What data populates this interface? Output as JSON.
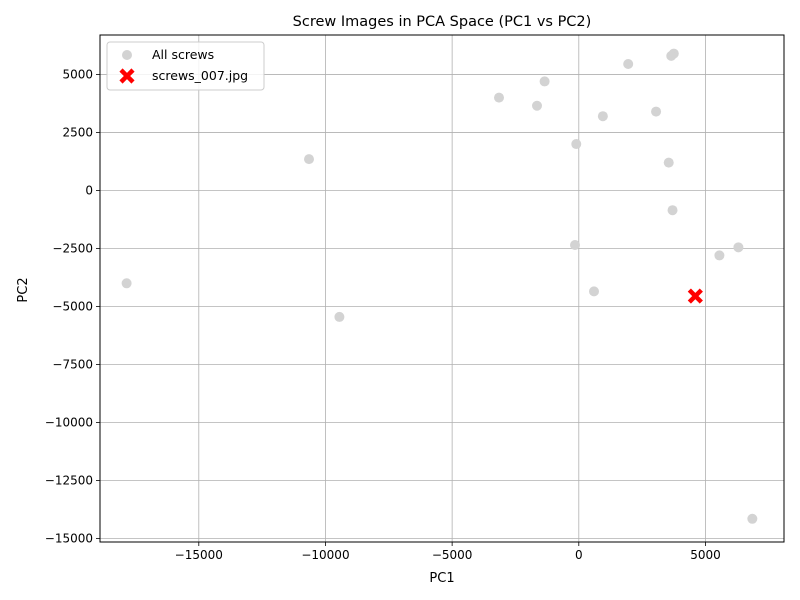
{
  "chart_data": {
    "type": "scatter",
    "title": "Screw Images in PCA Space (PC1 vs PC2)",
    "xlabel": "PC1",
    "ylabel": "PC2",
    "xlim": [
      -18900,
      8100
    ],
    "ylim": [
      -15150,
      6700
    ],
    "xticks": [
      -15000,
      -10000,
      -5000,
      0,
      5000
    ],
    "xtick_labels": [
      "−15000",
      "−10000",
      "−5000",
      "0",
      "5000"
    ],
    "yticks": [
      -15000,
      -12500,
      -10000,
      -7500,
      -5000,
      -2500,
      0,
      2500,
      5000
    ],
    "ytick_labels": [
      "−15000",
      "−12500",
      "−10000",
      "−7500",
      "−5000",
      "−2500",
      "0",
      "2500",
      "5000"
    ],
    "grid": true,
    "legend_position": "top-left",
    "series": [
      {
        "name": "All screws",
        "marker": "circle",
        "color": "#d3d3d3",
        "points": [
          {
            "x": 3750,
            "y": 5900
          },
          {
            "x": 3650,
            "y": 5800
          },
          {
            "x": 1950,
            "y": 5450
          },
          {
            "x": -1350,
            "y": 4700
          },
          {
            "x": -3150,
            "y": 4000
          },
          {
            "x": -1650,
            "y": 3650
          },
          {
            "x": 950,
            "y": 3200
          },
          {
            "x": 3050,
            "y": 3400
          },
          {
            "x": -100,
            "y": 2000
          },
          {
            "x": -10650,
            "y": 1350
          },
          {
            "x": 3550,
            "y": 1200
          },
          {
            "x": 3700,
            "y": -850
          },
          {
            "x": -150,
            "y": -2350
          },
          {
            "x": 6300,
            "y": -2450
          },
          {
            "x": 5550,
            "y": -2800
          },
          {
            "x": 600,
            "y": -4350
          },
          {
            "x": -17850,
            "y": -4000
          },
          {
            "x": -9450,
            "y": -5450
          },
          {
            "x": 6850,
            "y": -14150
          }
        ]
      },
      {
        "name": "screws_007.jpg",
        "marker": "x",
        "color": "#ff0000",
        "points": [
          {
            "x": 4600,
            "y": -4550
          }
        ]
      }
    ]
  }
}
